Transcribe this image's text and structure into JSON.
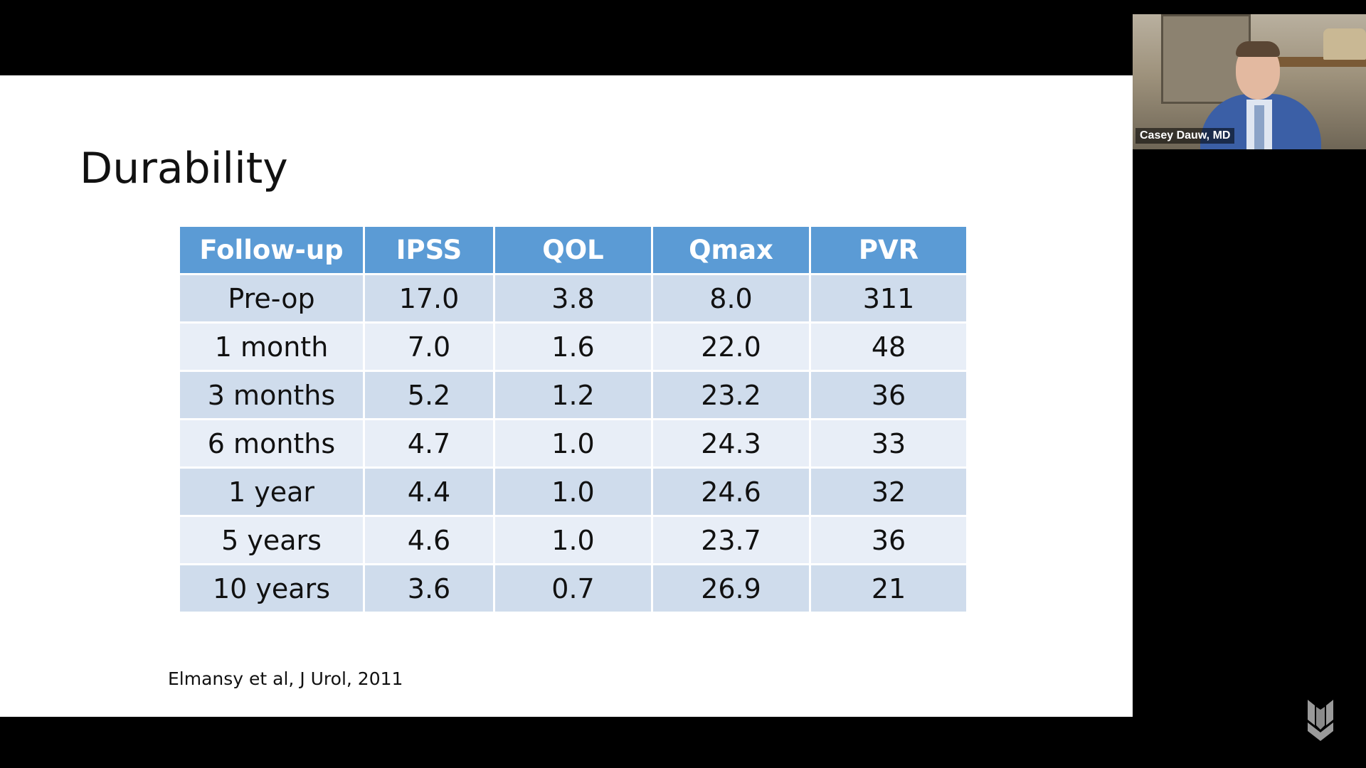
{
  "slide": {
    "title": "Durability",
    "citation": "Elmansy et al, J Urol, 2011"
  },
  "table": {
    "headers": [
      "Follow-up",
      "IPSS",
      "QOL",
      "Qmax",
      "PVR"
    ],
    "rows": [
      [
        "Pre-op",
        "17.0",
        "3.8",
        "8.0",
        "311"
      ],
      [
        "1 month",
        "7.0",
        "1.6",
        "22.0",
        "48"
      ],
      [
        "3 months",
        "5.2",
        "1.2",
        "23.2",
        "36"
      ],
      [
        "6 months",
        "4.7",
        "1.0",
        "24.3",
        "33"
      ],
      [
        "1 year",
        "4.4",
        "1.0",
        "24.6",
        "32"
      ],
      [
        "5 years",
        "4.6",
        "1.0",
        "23.7",
        "36"
      ],
      [
        "10 years",
        "3.6",
        "0.7",
        "26.9",
        "21"
      ]
    ]
  },
  "webcam": {
    "participant_name": "Casey Dauw, MD"
  },
  "colors": {
    "header_bg": "#5b9bd5",
    "row_odd": "#cfdcec",
    "row_even": "#e8eef7"
  },
  "icons": {
    "brand_logo": "chevron-shield-logo-icon"
  }
}
